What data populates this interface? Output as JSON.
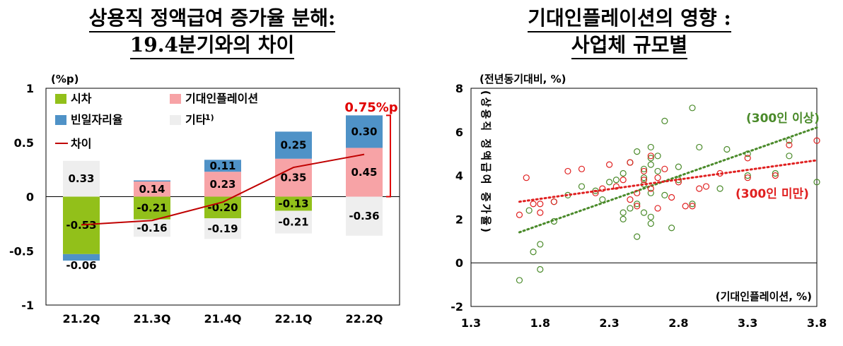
{
  "titles": {
    "left_line1": "상용직 정액급여 증가율 분해:",
    "left_line2": "19.4분기와의 차이",
    "right_line1": "기대인플레이션의 영향 :",
    "right_line2": "사업체 규모별"
  },
  "chart_data": [
    {
      "type": "bar",
      "stacked": true,
      "ylabel": "(%p)",
      "categories": [
        "21.2Q",
        "21.3Q",
        "21.4Q",
        "22.1Q",
        "22.2Q"
      ],
      "ylim": [
        -1,
        1
      ],
      "yticks": [
        "1",
        "0.5",
        "0",
        "-0.5",
        "-1"
      ],
      "series": [
        {
          "name": "시차",
          "color": "#92c01a",
          "values": [
            -0.53,
            -0.21,
            -0.2,
            -0.13,
            null
          ],
          "labels": [
            "-0.53",
            "-0.21",
            "-0.20",
            "-0.13",
            ""
          ]
        },
        {
          "name": "기대인플레이션",
          "color": "#f7a3a6",
          "values": [
            null,
            0.14,
            0.23,
            0.35,
            0.45
          ],
          "labels": [
            "",
            "0.14",
            "0.23",
            "0.35",
            "0.45"
          ]
        },
        {
          "name": "빈일자리율",
          "color": "#4f92c7",
          "values": [
            -0.06,
            0.01,
            0.11,
            0.25,
            0.3
          ],
          "labels": [
            "-0.06",
            "",
            "0.11",
            "0.25",
            "0.30"
          ]
        },
        {
          "name": "기타",
          "superscript": "1)",
          "color": "#eeeeee",
          "values": [
            0.33,
            -0.16,
            -0.19,
            -0.21,
            -0.36
          ],
          "labels": [
            "0.33",
            "-0.16",
            "-0.19",
            "-0.21",
            "-0.36"
          ]
        }
      ],
      "line": {
        "name": "차이",
        "color": "#c00000",
        "values": [
          -0.26,
          -0.22,
          -0.05,
          0.27,
          0.39
        ]
      },
      "annotation": {
        "text": "0.75%p",
        "color": "#e00000"
      }
    },
    {
      "type": "scatter",
      "ylabel": "(전년동기대비, %)",
      "ylabel_vertical": "(상용직 정액급여 증가율)",
      "xlabel": "(기대인플레이션, %)",
      "xlim": [
        1.3,
        3.8
      ],
      "ylim": [
        -2,
        8
      ],
      "xticks": [
        "1.3",
        "1.8",
        "2.3",
        "2.8",
        "3.3",
        "3.8"
      ],
      "yticks": [
        "8",
        "6",
        "4",
        "2",
        "0",
        "-2"
      ],
      "series": [
        {
          "name": "(300인 이상)",
          "color": "#4a8a2a",
          "trend": [
            [
              1.65,
              1.4
            ],
            [
              3.8,
              6.2
            ]
          ],
          "points": [
            [
              1.65,
              -0.8
            ],
            [
              1.72,
              2.4
            ],
            [
              1.75,
              0.5
            ],
            [
              1.8,
              0.85
            ],
            [
              1.8,
              -0.3
            ],
            [
              1.9,
              1.9
            ],
            [
              1.9,
              2.8
            ],
            [
              2.0,
              3.1
            ],
            [
              2.1,
              3.5
            ],
            [
              2.2,
              3.3
            ],
            [
              2.25,
              2.9
            ],
            [
              2.3,
              3.7
            ],
            [
              2.35,
              3.8
            ],
            [
              2.4,
              4.1
            ],
            [
              2.4,
              2.3
            ],
            [
              2.4,
              2.0
            ],
            [
              2.45,
              4.6
            ],
            [
              2.45,
              2.5
            ],
            [
              2.5,
              5.1
            ],
            [
              2.5,
              2.7
            ],
            [
              2.5,
              1.2
            ],
            [
              2.55,
              4.3
            ],
            [
              2.55,
              3.9
            ],
            [
              2.55,
              3.6
            ],
            [
              2.55,
              2.3
            ],
            [
              2.6,
              4.5
            ],
            [
              2.6,
              4.8
            ],
            [
              2.6,
              3.2
            ],
            [
              2.6,
              2.1
            ],
            [
              2.6,
              1.8
            ],
            [
              2.6,
              5.3
            ],
            [
              2.65,
              4.2
            ],
            [
              2.65,
              4.9
            ],
            [
              2.7,
              3.1
            ],
            [
              2.7,
              6.5
            ],
            [
              2.75,
              1.6
            ],
            [
              2.8,
              3.8
            ],
            [
              2.8,
              4.4
            ],
            [
              2.9,
              7.1
            ],
            [
              2.9,
              2.7
            ],
            [
              2.95,
              5.3
            ],
            [
              3.1,
              3.4
            ],
            [
              3.15,
              5.2
            ],
            [
              3.3,
              4.0
            ],
            [
              3.3,
              5.0
            ],
            [
              3.5,
              4.1
            ],
            [
              3.6,
              5.6
            ],
            [
              3.6,
              4.9
            ],
            [
              3.8,
              3.7
            ]
          ]
        },
        {
          "name": "(300인 미만)",
          "color": "#e02020",
          "trend": [
            [
              1.65,
              2.8
            ],
            [
              3.8,
              4.7
            ]
          ],
          "points": [
            [
              1.65,
              2.2
            ],
            [
              1.7,
              3.9
            ],
            [
              1.75,
              2.7
            ],
            [
              1.8,
              2.7
            ],
            [
              1.8,
              2.3
            ],
            [
              1.9,
              2.8
            ],
            [
              2.0,
              4.2
            ],
            [
              2.1,
              4.3
            ],
            [
              2.2,
              3.2
            ],
            [
              2.25,
              3.4
            ],
            [
              2.3,
              4.5
            ],
            [
              2.35,
              3.5
            ],
            [
              2.4,
              3.8
            ],
            [
              2.45,
              2.9
            ],
            [
              2.45,
              4.6
            ],
            [
              2.5,
              3.2
            ],
            [
              2.5,
              2.6
            ],
            [
              2.55,
              4.2
            ],
            [
              2.55,
              3.8
            ],
            [
              2.6,
              3.4
            ],
            [
              2.6,
              4.9
            ],
            [
              2.65,
              2.5
            ],
            [
              2.65,
              3.9
            ],
            [
              2.7,
              4.3
            ],
            [
              2.75,
              3.0
            ],
            [
              2.8,
              3.7
            ],
            [
              2.85,
              2.6
            ],
            [
              2.9,
              2.6
            ],
            [
              2.95,
              3.4
            ],
            [
              3.0,
              3.5
            ],
            [
              3.1,
              4.1
            ],
            [
              3.3,
              3.9
            ],
            [
              3.3,
              4.8
            ],
            [
              3.5,
              4.0
            ],
            [
              3.6,
              5.4
            ],
            [
              3.8,
              5.6
            ]
          ]
        }
      ]
    }
  ]
}
